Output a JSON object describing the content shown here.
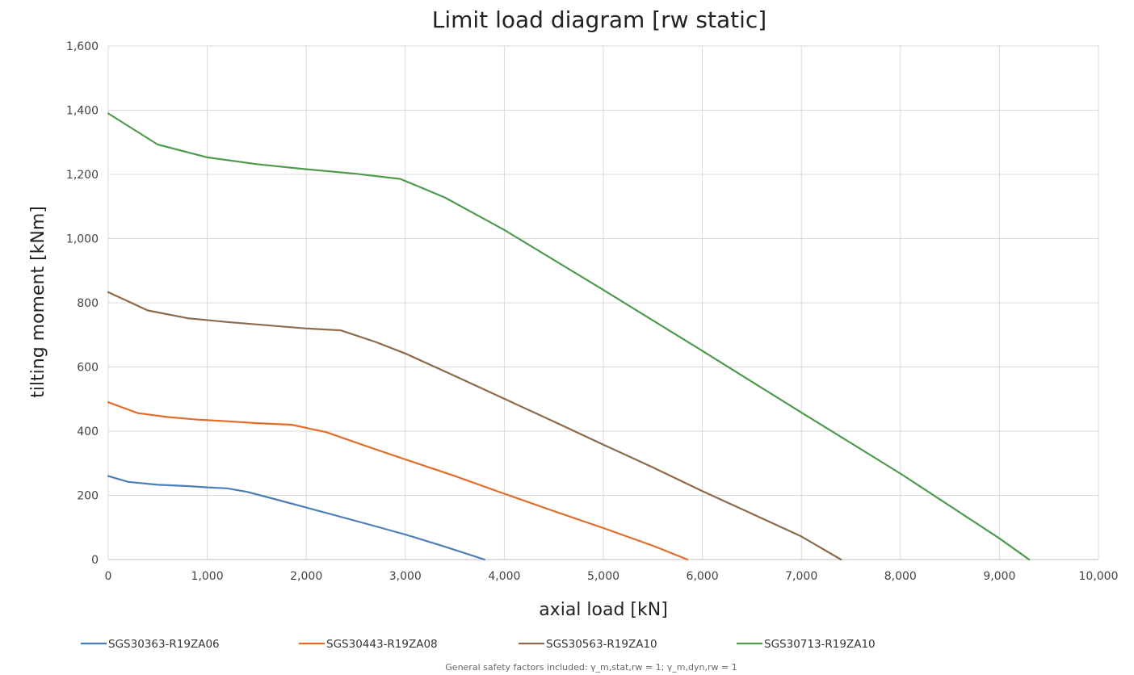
{
  "chart_data": {
    "type": "line",
    "title": "Limit load diagram [rw static]",
    "xlabel": "axial load [kN]",
    "ylabel": "tilting moment [kNm]",
    "xlim": [
      0,
      10000
    ],
    "ylim": [
      0,
      1600
    ],
    "x_ticks": [
      0,
      1000,
      2000,
      3000,
      4000,
      5000,
      6000,
      7000,
      8000,
      9000,
      10000
    ],
    "x_tick_labels": [
      "0",
      "1,000",
      "2,000",
      "3,000",
      "4,000",
      "5,000",
      "6,000",
      "7,000",
      "8,000",
      "9,000",
      "10,000"
    ],
    "y_ticks": [
      0,
      200,
      400,
      600,
      800,
      1000,
      1200,
      1400,
      1600
    ],
    "y_tick_labels": [
      "0",
      "200",
      "400",
      "600",
      "800",
      "1,000",
      "1,200",
      "1,400",
      "1,600"
    ],
    "grid": true,
    "legend_position": "bottom",
    "series": [
      {
        "name": "SGS30363-R19ZA06",
        "color": "#4a7ebb",
        "points": [
          [
            0,
            260
          ],
          [
            200,
            242
          ],
          [
            500,
            233
          ],
          [
            800,
            229
          ],
          [
            1000,
            225
          ],
          [
            1200,
            222
          ],
          [
            1400,
            211
          ],
          [
            1600,
            195
          ],
          [
            2000,
            162
          ],
          [
            2300,
            137
          ],
          [
            2600,
            112
          ],
          [
            3000,
            78
          ],
          [
            3400,
            40
          ],
          [
            3800,
            0
          ]
        ]
      },
      {
        "name": "SGS30443-R19ZA08",
        "color": "#e36c2b",
        "points": [
          [
            0,
            490
          ],
          [
            300,
            456
          ],
          [
            600,
            444
          ],
          [
            900,
            436
          ],
          [
            1200,
            431
          ],
          [
            1500,
            425
          ],
          [
            1850,
            420
          ],
          [
            2200,
            397
          ],
          [
            2600,
            354
          ],
          [
            3000,
            312
          ],
          [
            3500,
            260
          ],
          [
            4000,
            205
          ],
          [
            4500,
            151
          ],
          [
            5000,
            98
          ],
          [
            5500,
            43
          ],
          [
            5850,
            0
          ]
        ]
      },
      {
        "name": "SGS30563-R19ZA10",
        "color": "#8b6b4a",
        "points": [
          [
            0,
            833
          ],
          [
            400,
            776
          ],
          [
            800,
            752
          ],
          [
            1200,
            740
          ],
          [
            1600,
            730
          ],
          [
            2000,
            720
          ],
          [
            2350,
            714
          ],
          [
            2700,
            678
          ],
          [
            3000,
            642
          ],
          [
            3500,
            572
          ],
          [
            4000,
            501
          ],
          [
            4500,
            430
          ],
          [
            5000,
            358
          ],
          [
            5500,
            287
          ],
          [
            6000,
            213
          ],
          [
            6500,
            143
          ],
          [
            7000,
            72
          ],
          [
            7400,
            0
          ]
        ]
      },
      {
        "name": "SGS30713-R19ZA10",
        "color": "#4e9a4e",
        "points": [
          [
            0,
            1390
          ],
          [
            500,
            1293
          ],
          [
            1000,
            1253
          ],
          [
            1500,
            1232
          ],
          [
            2000,
            1216
          ],
          [
            2500,
            1202
          ],
          [
            2950,
            1186
          ],
          [
            3400,
            1128
          ],
          [
            4000,
            1027
          ],
          [
            5000,
            840
          ],
          [
            6000,
            650
          ],
          [
            7000,
            458
          ],
          [
            8000,
            268
          ],
          [
            9000,
            66
          ],
          [
            9300,
            0
          ]
        ]
      }
    ],
    "footnote": "General safety factors included: γ_m,stat,rw = 1; γ_m,dyn,rw = 1"
  }
}
